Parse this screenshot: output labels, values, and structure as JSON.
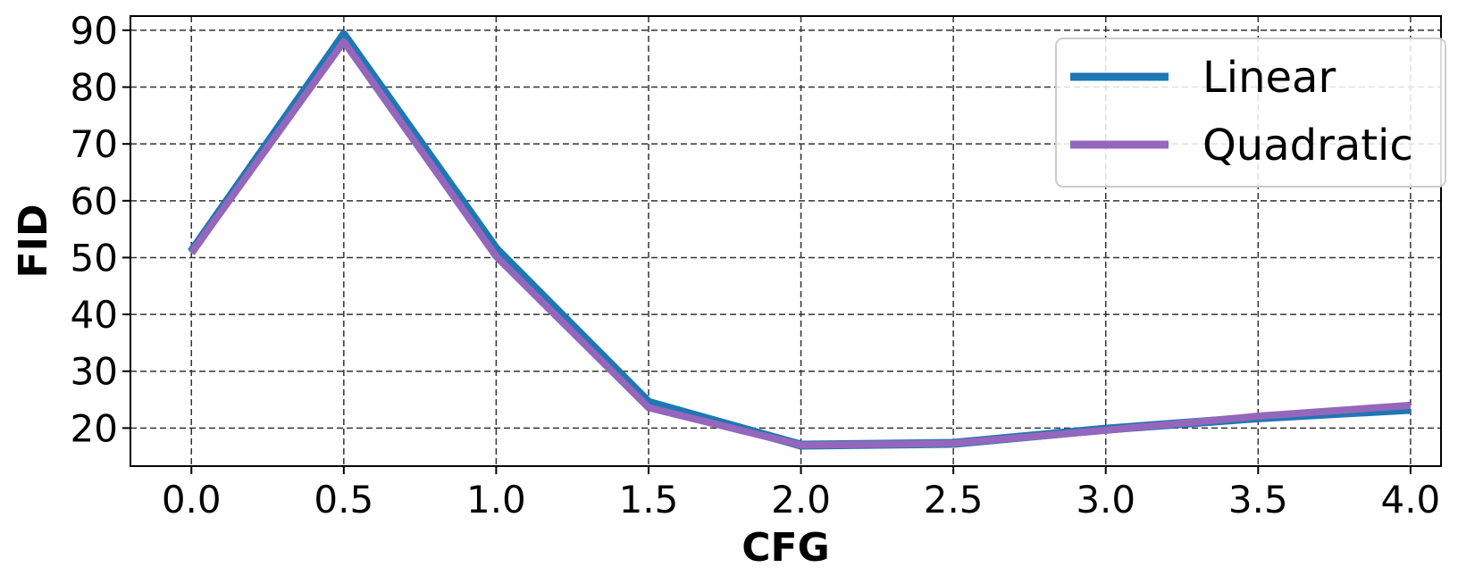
{
  "chart_data": {
    "type": "line",
    "x": [
      0.0,
      0.5,
      1.0,
      1.5,
      2.0,
      2.5,
      3.0,
      3.5,
      4.0
    ],
    "x_tick_labels": [
      "0.0",
      "0.5",
      "1.0",
      "1.5",
      "2.0",
      "2.5",
      "3.0",
      "3.5",
      "4.0"
    ],
    "y_ticks": [
      20,
      30,
      40,
      50,
      60,
      70,
      80,
      90
    ],
    "xlim": [
      -0.2,
      4.1
    ],
    "ylim": [
      13.3,
      92.5
    ],
    "xlabel": "CFG",
    "ylabel": "FID",
    "grid": true,
    "legend_position": "top-right",
    "series": [
      {
        "name": "Linear",
        "color": "#1f77b4",
        "values": [
          51.0,
          89.2,
          51.5,
          24.5,
          17.0,
          17.3,
          19.8,
          21.8,
          23.3
        ]
      },
      {
        "name": "Quadratic",
        "color": "#9467bd",
        "values": [
          50.8,
          88.0,
          50.2,
          23.6,
          17.0,
          17.3,
          19.6,
          22.1,
          24.0
        ]
      }
    ]
  }
}
